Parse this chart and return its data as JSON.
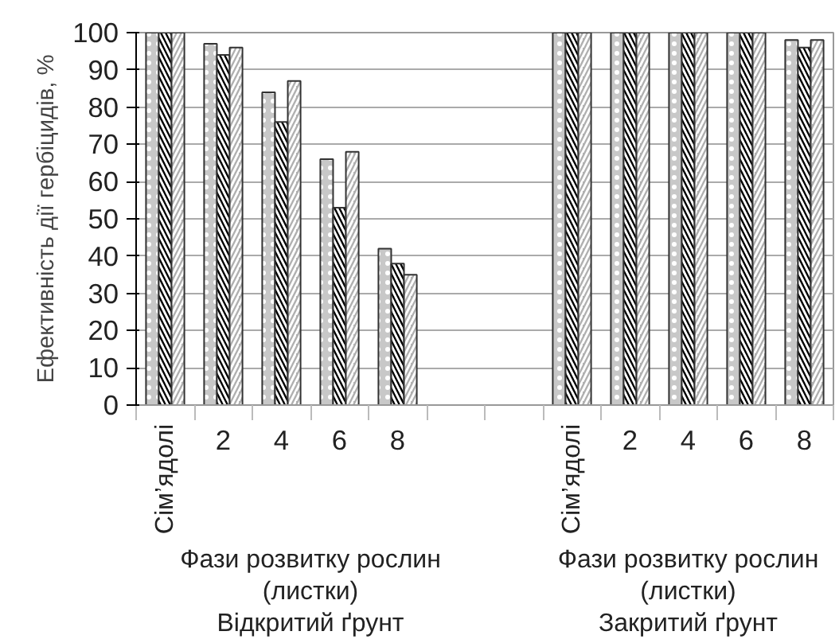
{
  "chart_data": {
    "type": "bar",
    "ylabel": "Ефективність дії гербіцидів, %",
    "categories": [
      "Сім’ядолі",
      "2",
      "4",
      "6",
      "8",
      null,
      null,
      "Сім’ядолі",
      "2",
      "4",
      "6",
      "8"
    ],
    "series": [
      {
        "color": "#c8c8c8",
        "values": [
          100,
          97,
          84,
          66,
          42,
          null,
          null,
          100,
          100,
          100,
          100,
          98
        ]
      },
      {
        "color": "#000000",
        "values": [
          100,
          94,
          76,
          53,
          38,
          null,
          null,
          100,
          100,
          100,
          100,
          96
        ]
      },
      {
        "color": "#b0b0b0",
        "values": [
          100,
          96,
          87,
          68,
          35,
          null,
          null,
          100,
          100,
          100,
          100,
          98
        ]
      }
    ],
    "ylim": [
      0,
      100
    ],
    "yticks": [
      0,
      10,
      20,
      30,
      40,
      50,
      60,
      70,
      80,
      90,
      100
    ],
    "grid": "y",
    "annotations": [
      "Фази розвитку рослин\n(листки)\nВідкритий ґрунт",
      "Фази розвитку рослин\n(листки)\nЗакритий ґрунт"
    ]
  }
}
